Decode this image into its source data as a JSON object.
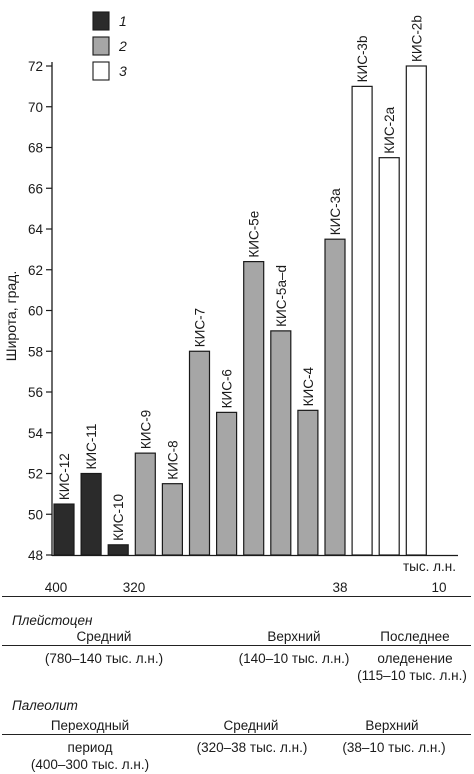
{
  "chart_data": {
    "type": "bar",
    "ylabel": "Широта, град.",
    "xlabel": "тыс. л.н.",
    "ylim": [
      48,
      72
    ],
    "yticks": [
      48,
      50,
      52,
      54,
      56,
      58,
      60,
      62,
      64,
      66,
      68,
      70,
      72
    ],
    "legend": [
      {
        "key": "1",
        "label": "1",
        "color": "#2b2b2b"
      },
      {
        "key": "2",
        "label": "2",
        "color": "#a6a6a6"
      },
      {
        "key": "3",
        "label": "3",
        "color": "#ffffff"
      }
    ],
    "bars": [
      {
        "label": "КИС-12",
        "value": 50.5,
        "group": "1"
      },
      {
        "label": "КИС-11",
        "value": 52.0,
        "group": "1"
      },
      {
        "label": "КИС-10",
        "value": 48.5,
        "group": "1"
      },
      {
        "label": "КИС-9",
        "value": 53.0,
        "group": "2"
      },
      {
        "label": "КИС-8",
        "value": 51.5,
        "group": "2"
      },
      {
        "label": "КИС-7",
        "value": 58.0,
        "group": "2"
      },
      {
        "label": "КИС-6",
        "value": 55.0,
        "group": "2"
      },
      {
        "label": "КИС-5е",
        "value": 62.4,
        "group": "2"
      },
      {
        "label": "КИС-5a–d",
        "value": 59.0,
        "group": "2"
      },
      {
        "label": "КИС-4",
        "value": 55.1,
        "group": "2"
      },
      {
        "label": "КИС-3a",
        "value": 63.5,
        "group": "2"
      },
      {
        "label": "КИС-3b",
        "value": 71.0,
        "group": "3"
      },
      {
        "label": "КИС-2a",
        "value": 67.5,
        "group": "3"
      },
      {
        "label": "КИС-2b",
        "value": 72.0,
        "group": "3"
      }
    ],
    "time_axis": {
      "unit": "тыс. л.н.",
      "ticks": [
        "400",
        "320",
        "38",
        "10"
      ]
    }
  },
  "pleistocene": {
    "title": "Плейстоцен",
    "middle": {
      "name": "Средний",
      "range": "(780–140 тыс. л.н.)"
    },
    "upper": {
      "name": "Верхний",
      "range": "(140–10 тыс. л.н.)"
    },
    "last_glacial": {
      "name": "Последнее",
      "name2": "оледенение",
      "range": "(115–10 тыс. л.н.)"
    }
  },
  "paleolithic": {
    "title": "Палеолит",
    "transitional": {
      "name": "Переходный",
      "name2": "период",
      "range": "(400–300 тыс. л.н.)"
    },
    "middle": {
      "name": "Средний",
      "range": "(320–38 тыс. л.н.)"
    },
    "upper": {
      "name": "Верхний",
      "range": "(38–10 тыс. л.н.)"
    }
  }
}
